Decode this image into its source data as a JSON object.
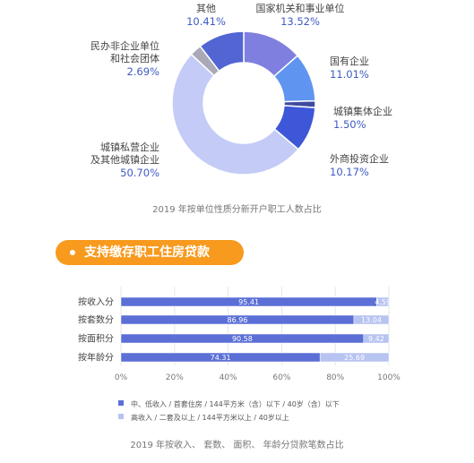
{
  "colors": {
    "accent_orange": "#f79a1e",
    "pct_text": "#3f5bc4",
    "bar_low": "#5b6fd6",
    "bar_high": "#b7c3f1"
  },
  "section": {
    "title": "支持缴存职工住房贷款"
  },
  "donut_caption": "2019 年按单位性质分新开户职工人数占比",
  "bar_caption": "2019 年按收入、 套数、 面积、 年龄分贷款笔数占比",
  "chart_data": [
    {
      "type": "pie",
      "style": "donut",
      "title": "",
      "slices": [
        {
          "label": "国家机关和事业单位",
          "label_lines": [
            "国家机关和事业单位"
          ],
          "pct_text": "13.52%",
          "value": 13.52,
          "color": "#7f7fe0"
        },
        {
          "label": "国有企业",
          "label_lines": [
            "国有企业"
          ],
          "pct_text": "11.01%",
          "value": 11.01,
          "color": "#5f95f0"
        },
        {
          "label": "城镇集体企业",
          "label_lines": [
            "城镇集体企业"
          ],
          "pct_text": "1.50%",
          "value": 1.5,
          "color": "#3f4aa0"
        },
        {
          "label": "外商投资企业",
          "label_lines": [
            "外商投资企业"
          ],
          "pct_text": "10.17%",
          "value": 10.17,
          "color": "#3e57d8"
        },
        {
          "label": "城镇私营企业及其他城镇企业",
          "label_lines": [
            "城镇私营企业",
            "及其他城镇企业"
          ],
          "pct_text": "50.70%",
          "value": 50.7,
          "color": "#c3cbf6"
        },
        {
          "label": "民办非企业单位和社会团体",
          "label_lines": [
            "民办非企业单位",
            "和社会团体"
          ],
          "pct_text": "2.69%",
          "value": 2.69,
          "color": "#a9a9b8"
        },
        {
          "label": "其他",
          "label_lines": [
            "其他"
          ],
          "pct_text": "10.41%",
          "value": 10.41,
          "color": "#5265d2"
        }
      ]
    },
    {
      "type": "bar",
      "orientation": "horizontal",
      "stacked": true,
      "title": "",
      "categories": [
        "按收入分",
        "按套数分",
        "按面积分",
        "按年龄分"
      ],
      "series": [
        {
          "name": "中、低收入 / 首套住房 / 144平方米（含）以下 / 40岁（含）以下",
          "values": [
            95.41,
            86.96,
            90.58,
            74.31
          ],
          "color": "#5b6fd6"
        },
        {
          "name": "高收入 / 二套及以上 / 144平方米以上 / 40岁以上",
          "values": [
            4.59,
            13.04,
            9.42,
            25.69
          ],
          "color": "#b7c3f1"
        }
      ],
      "xlim": [
        0,
        100
      ],
      "xticks": [
        "0%",
        "20%",
        "40%",
        "60%",
        "80%",
        "100%"
      ],
      "grid": true,
      "legend": "bottom"
    }
  ]
}
